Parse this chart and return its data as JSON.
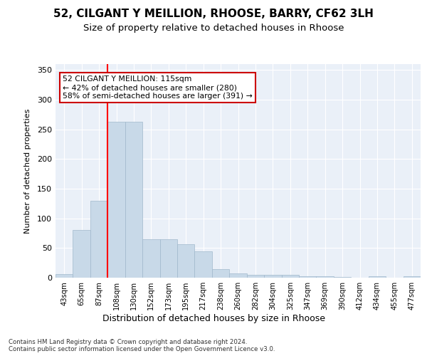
{
  "title1": "52, CILGANT Y MEILLION, RHOOSE, BARRY, CF62 3LH",
  "title2": "Size of property relative to detached houses in Rhoose",
  "xlabel": "Distribution of detached houses by size in Rhoose",
  "ylabel": "Number of detached properties",
  "categories": [
    "43sqm",
    "65sqm",
    "87sqm",
    "108sqm",
    "130sqm",
    "152sqm",
    "173sqm",
    "195sqm",
    "217sqm",
    "238sqm",
    "260sqm",
    "282sqm",
    "304sqm",
    "325sqm",
    "347sqm",
    "369sqm",
    "390sqm",
    "412sqm",
    "434sqm",
    "455sqm",
    "477sqm"
  ],
  "values": [
    6,
    80,
    130,
    263,
    263,
    65,
    65,
    56,
    45,
    15,
    7,
    5,
    5,
    5,
    2,
    2,
    1,
    0,
    2,
    0,
    2
  ],
  "bar_color": "#c8d9e8",
  "bar_edge_color": "#a0b8cc",
  "annotation_text": "52 CILGANT Y MEILLION: 115sqm\n← 42% of detached houses are smaller (280)\n58% of semi-detached houses are larger (391) →",
  "annotation_box_color": "#ffffff",
  "annotation_box_edge": "#cc0000",
  "footnote": "Contains HM Land Registry data © Crown copyright and database right 2024.\nContains public sector information licensed under the Open Government Licence v3.0.",
  "ylim": [
    0,
    360
  ],
  "yticks": [
    0,
    50,
    100,
    150,
    200,
    250,
    300,
    350
  ],
  "bg_color": "#eaf0f8",
  "grid_color": "#ffffff",
  "title1_fontsize": 11,
  "title2_fontsize": 9.5,
  "red_line_x": 3.0
}
